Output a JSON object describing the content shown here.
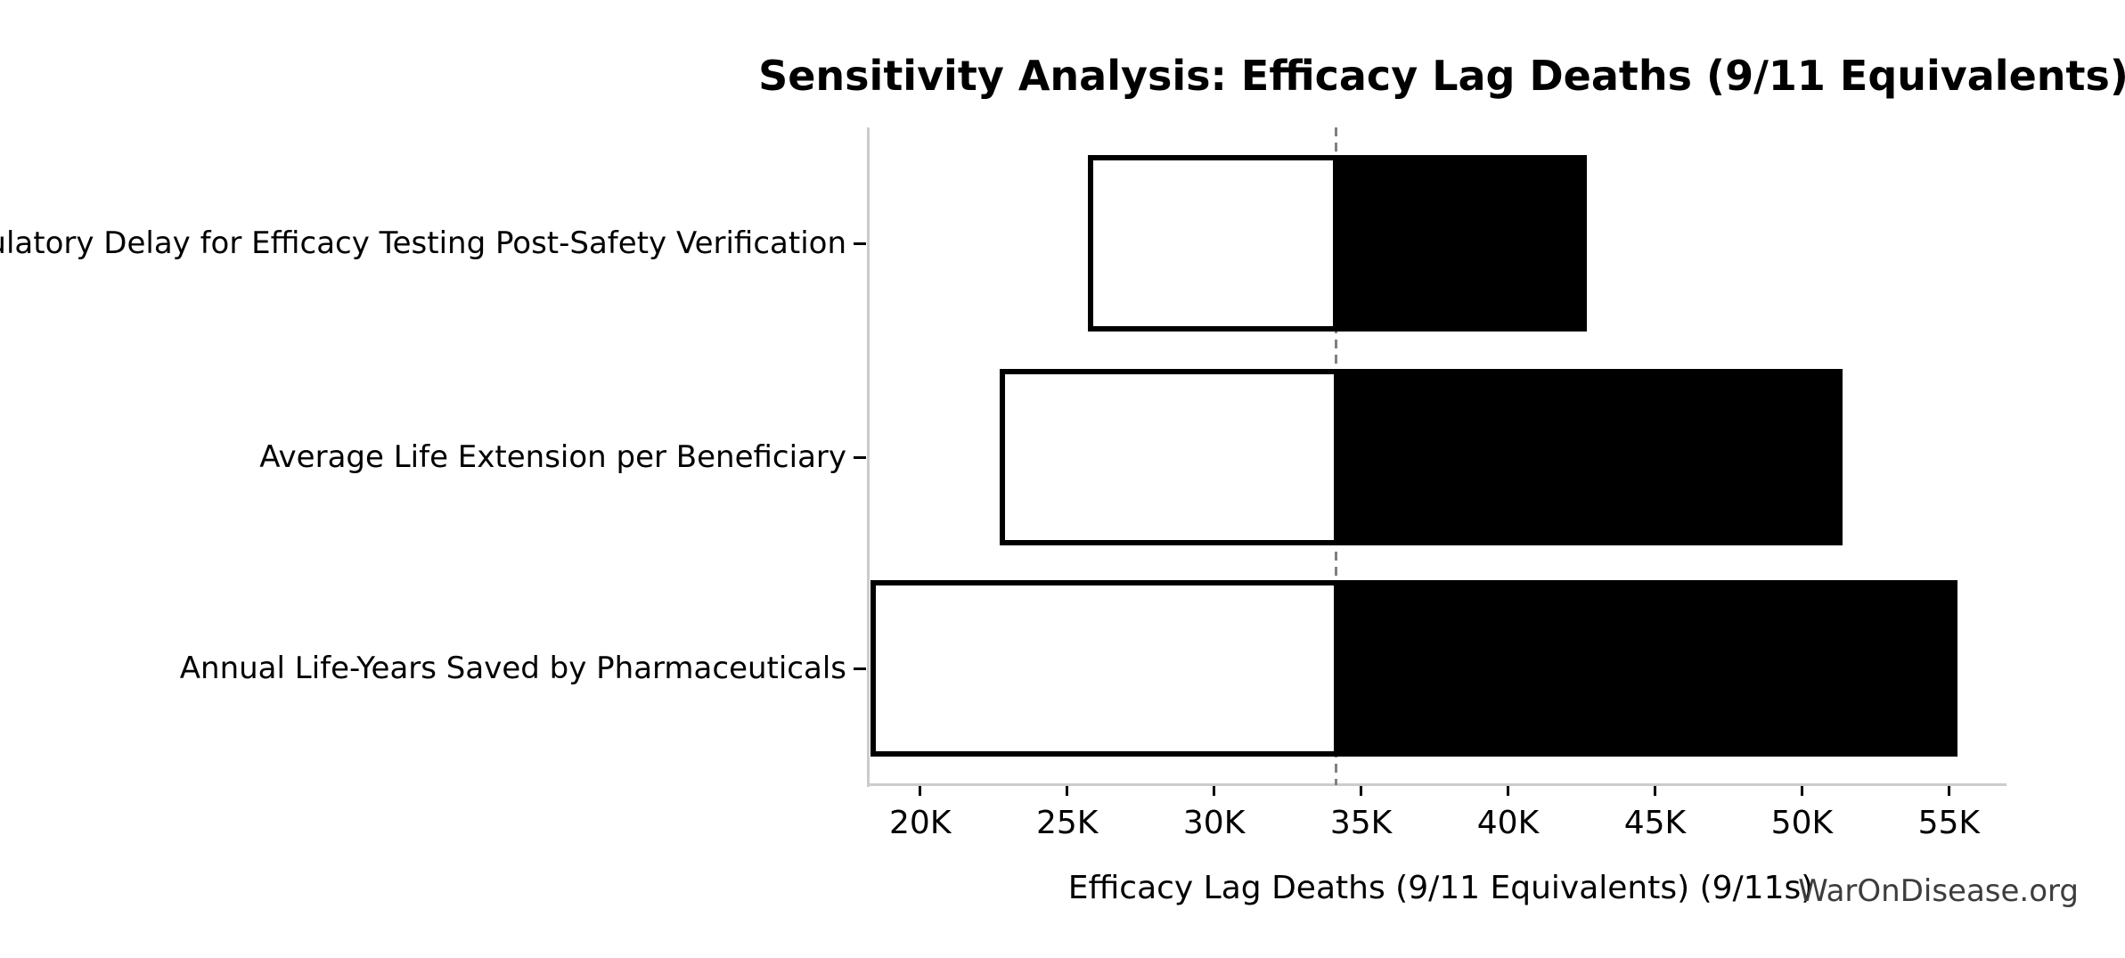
{
  "chart_data": {
    "type": "bar",
    "variant": "tornado-sensitivity",
    "orientation": "horizontal",
    "title": "Sensitivity Analysis: Efficacy Lag Deaths (9/11 Equivalents)",
    "xlabel": "Efficacy Lag Deaths (9/11 Equivalents) (9/11s)",
    "watermark": "WarOnDisease.org",
    "baseline": 34150,
    "xlim": [
      18250,
      56900
    ],
    "grid": false,
    "legend": null,
    "xticks": [
      {
        "value": 20000,
        "label": "20K"
      },
      {
        "value": 25000,
        "label": "25K"
      },
      {
        "value": 30000,
        "label": "30K"
      },
      {
        "value": 35000,
        "label": "35K"
      },
      {
        "value": 40000,
        "label": "40K"
      },
      {
        "value": 45000,
        "label": "45K"
      },
      {
        "value": 50000,
        "label": "50K"
      },
      {
        "value": 55000,
        "label": "55K"
      }
    ],
    "rows": [
      {
        "label": "Regulatory Delay for Efficacy Testing Post-Safety Verification",
        "low": 25800,
        "high": 42600
      },
      {
        "label": "Average Life Extension per Beneficiary",
        "low": 22800,
        "high": 51300
      },
      {
        "label": "Annual Life-Years Saved by Pharmaceuticals",
        "low": 18400,
        "high": 55200
      }
    ],
    "colors": {
      "low_bar": "#ffffff",
      "high_bar": "#000000",
      "bar_edge": "#000000",
      "baseline_line": "#808080",
      "spine": "#cccccc",
      "text": "#000000",
      "watermark_text": "#3d3d3d"
    }
  }
}
